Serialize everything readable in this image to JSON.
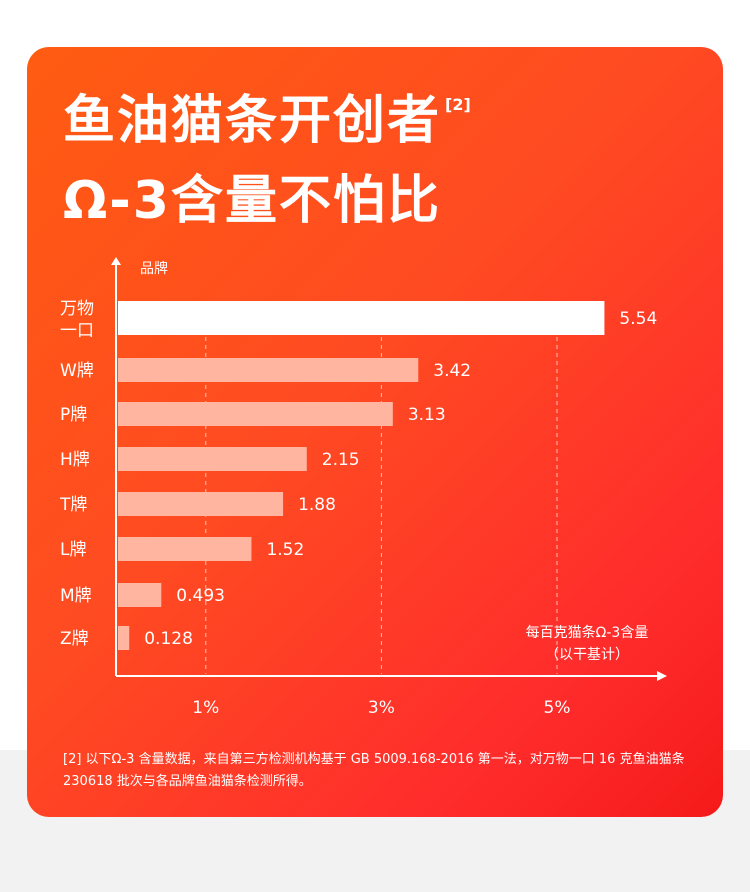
{
  "headline": {
    "line1": "鱼油猫条开创者",
    "citation": "[2]",
    "line2": "Ω-3含量不怕比"
  },
  "chart_data": {
    "type": "bar",
    "orientation": "horizontal",
    "y_axis_title": "品牌",
    "x_axis_title_line1": "每百克猫条Ω-3含量",
    "x_axis_title_line2": "（以干基计）",
    "categories": [
      "万物一口",
      "W牌",
      "P牌",
      "H牌",
      "T牌",
      "L牌",
      "M牌",
      "Z牌"
    ],
    "category_label_lines": [
      [
        "万物",
        "一口"
      ],
      [
        "W牌"
      ],
      [
        "P牌"
      ],
      [
        "H牌"
      ],
      [
        "T牌"
      ],
      [
        "L牌"
      ],
      [
        "M牌"
      ],
      [
        "Z牌"
      ]
    ],
    "values": [
      5.54,
      3.42,
      3.13,
      2.15,
      1.88,
      1.52,
      0.493,
      0.128
    ],
    "value_labels": [
      "5.54",
      "3.42",
      "3.13",
      "2.15",
      "1.88",
      "1.52",
      "0.493",
      "0.128"
    ],
    "highlight_index": 0,
    "x_ticks": [
      1,
      3,
      5
    ],
    "x_tick_labels": [
      "1%",
      "3%",
      "5%"
    ],
    "xlim": [
      0,
      6
    ],
    "grid": "vertical dashed at ticks",
    "colors": {
      "highlight_bar": "#ffffff",
      "other_bars": "#ffb5a0",
      "axis": "#ffffff",
      "grid": "#ffd6c8"
    }
  },
  "footnote": {
    "text": "[2] 以下Ω-3 含量数据，来自第三方检测机构基于 GB 5009.168-2016 第一法，对万物一口 16 克鱼油猫条 230618 批次与各品牌鱼油猫条检测所得。"
  }
}
